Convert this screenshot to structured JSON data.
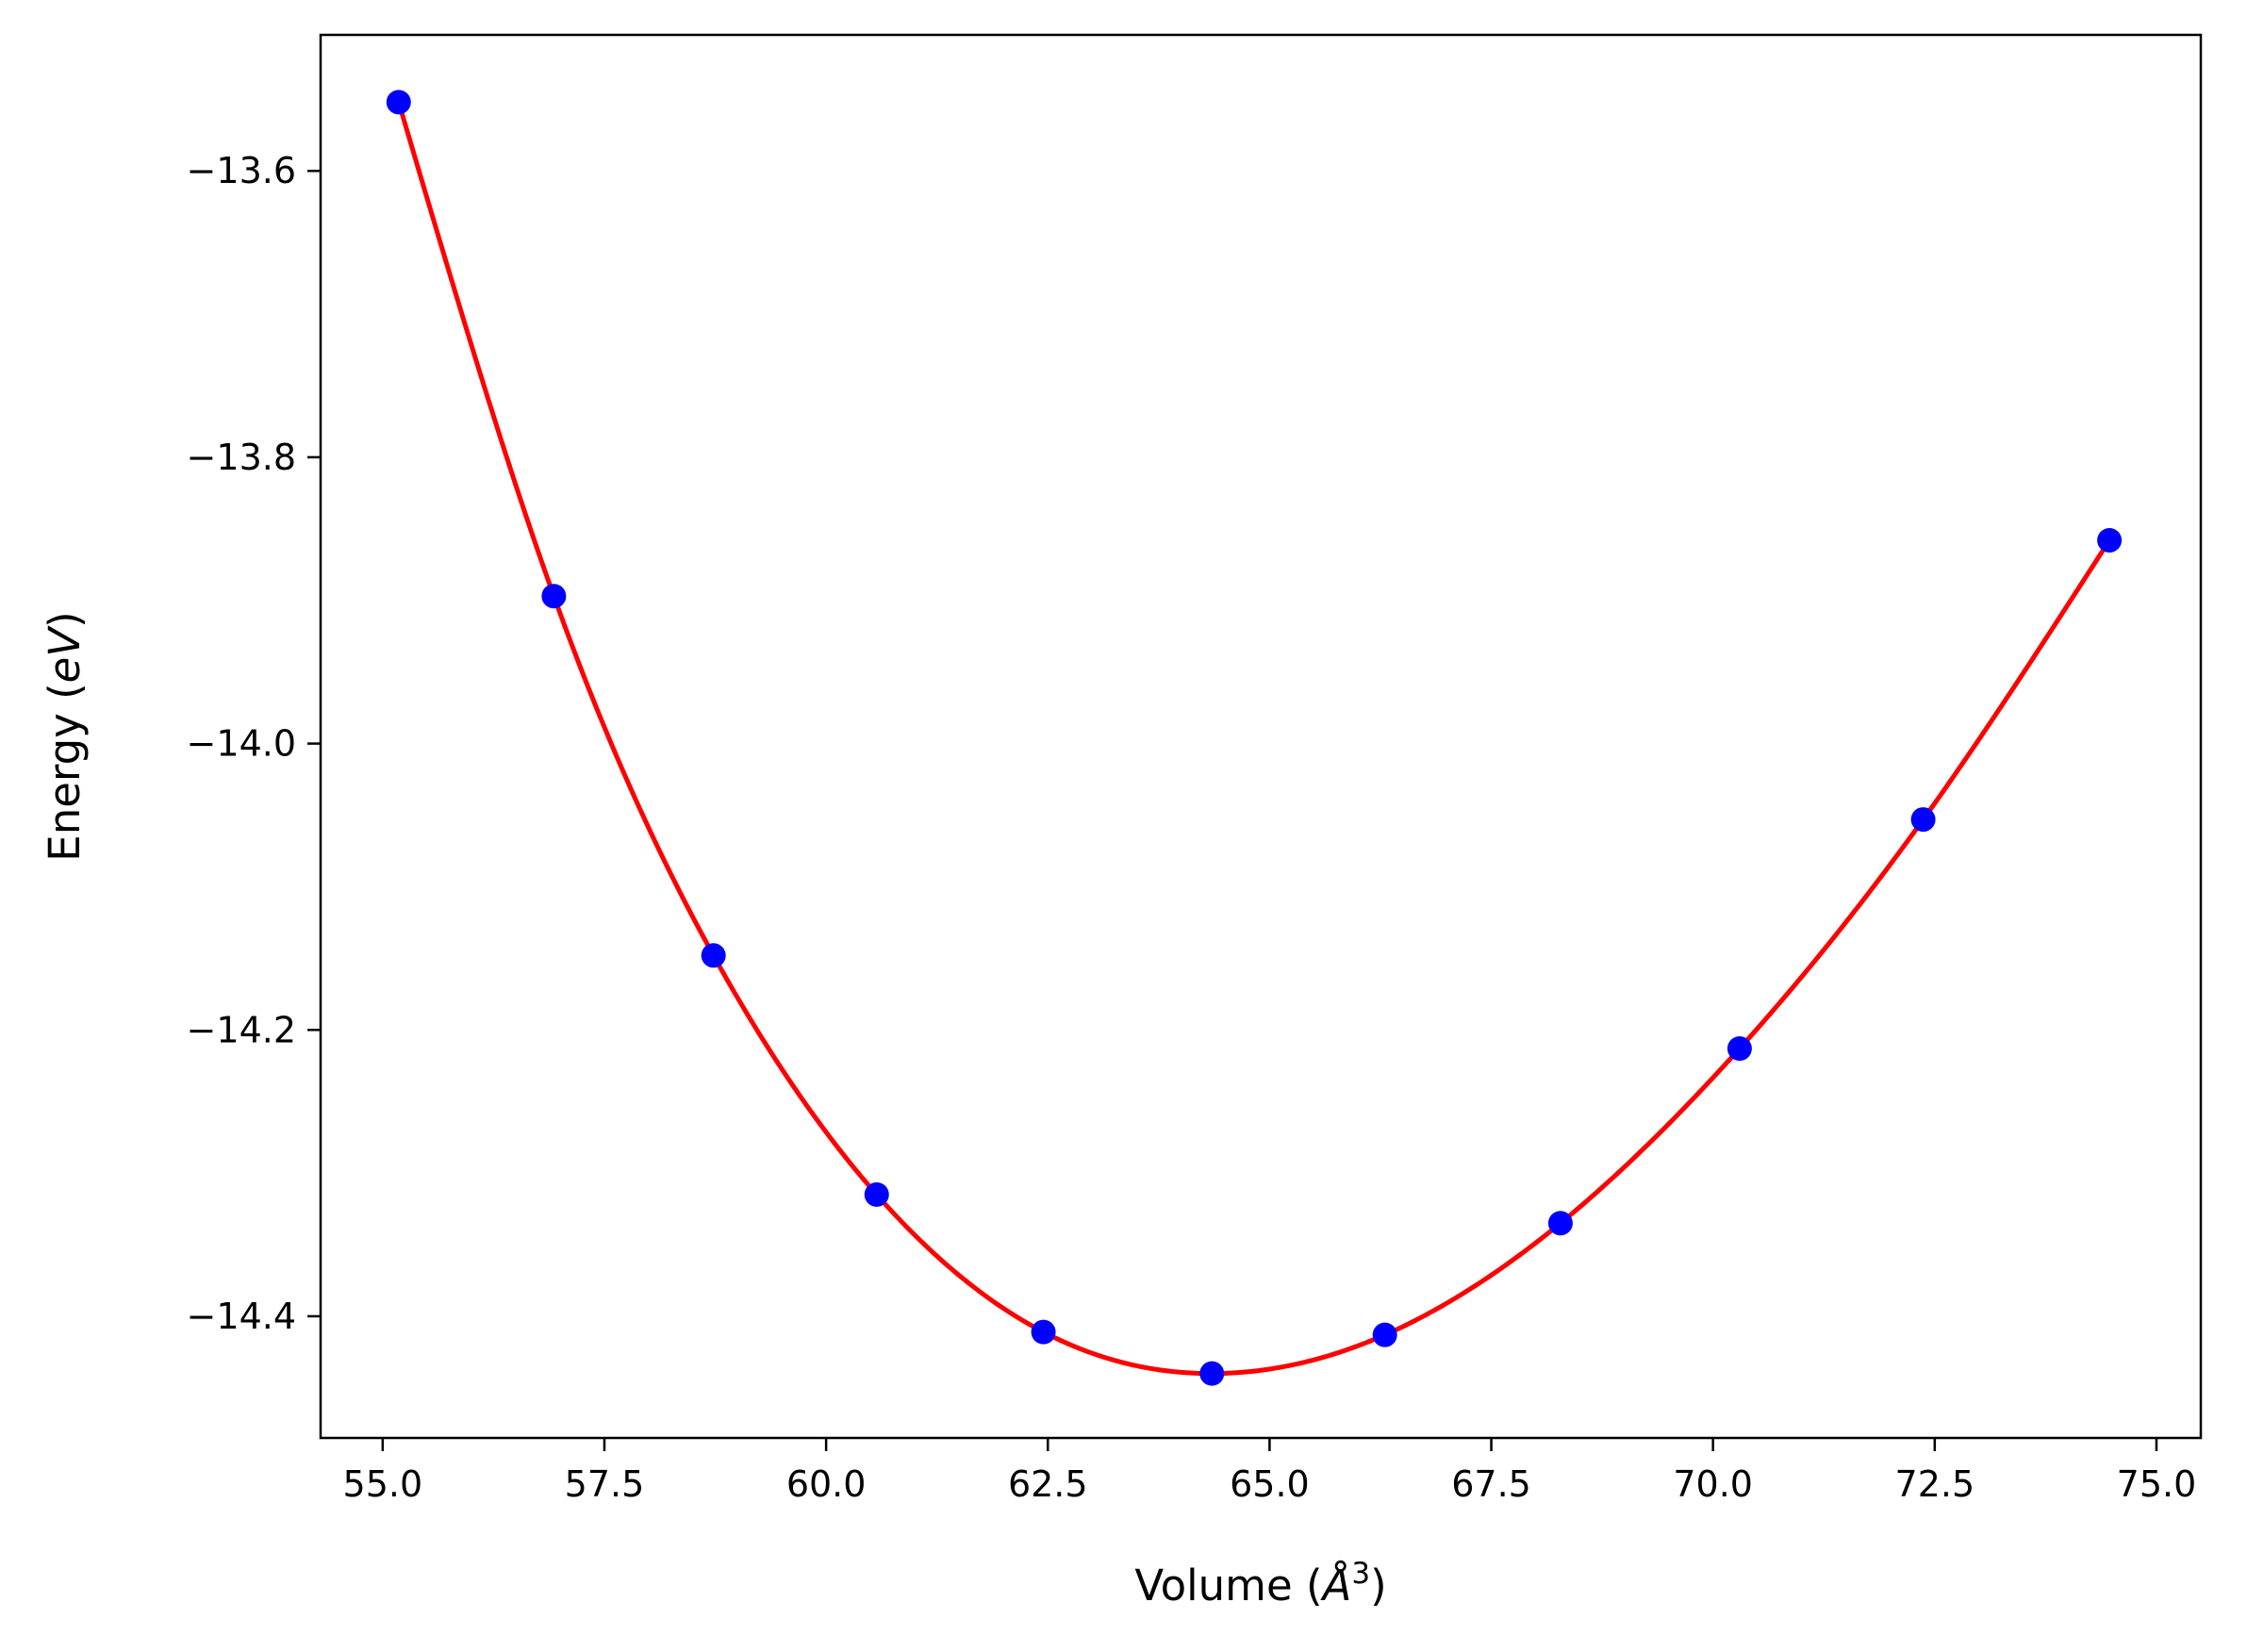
{
  "chart_data": {
    "type": "line",
    "title": "",
    "xlabel": "Volume (",
    "xlabel_symbol": "Å",
    "xlabel_power": "3",
    "xlabel_close": ")",
    "ylabel": "Energy (",
    "ylabel_unit": "eV",
    "ylabel_close": ")",
    "xlim": [
      54.3,
      75.5
    ],
    "ylim": [
      -14.485,
      -13.505
    ],
    "xticks": [
      55.0,
      57.5,
      60.0,
      62.5,
      65.0,
      67.5,
      70.0,
      72.5,
      75.0
    ],
    "xtick_labels": [
      "55.0",
      "57.5",
      "60.0",
      "62.5",
      "65.0",
      "67.5",
      "70.0",
      "72.5",
      "75.0"
    ],
    "yticks": [
      -13.6,
      -13.8,
      -14.0,
      -14.2,
      -14.4
    ],
    "ytick_labels": [
      "−13.6",
      "−13.8",
      "−14.0",
      "−14.2",
      "−14.4"
    ],
    "grid": false,
    "series": [
      {
        "kind": "points",
        "color": "#0000ff",
        "x": [
          55.18,
          56.93,
          58.73,
          60.57,
          62.45,
          64.35,
          66.3,
          68.28,
          70.3,
          72.37,
          74.47
        ],
        "y": [
          -13.552,
          -13.897,
          -14.148,
          -14.315,
          -14.411,
          -14.44,
          -14.413,
          -14.335,
          -14.213,
          -14.053,
          -13.858
        ]
      },
      {
        "kind": "fit",
        "color": "#ff0000",
        "x": [
          55.18,
          56.93,
          58.73,
          60.57,
          62.45,
          64.35,
          66.3,
          68.28,
          70.3,
          72.37,
          74.47
        ],
        "y": [
          -13.552,
          -13.897,
          -14.148,
          -14.315,
          -14.411,
          -14.44,
          -14.413,
          -14.335,
          -14.213,
          -14.053,
          -13.858
        ]
      }
    ]
  }
}
